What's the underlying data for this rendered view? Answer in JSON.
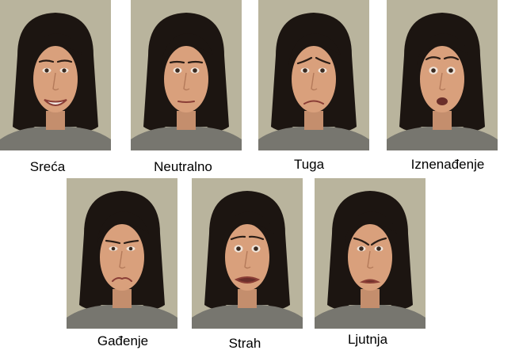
{
  "faces": [
    {
      "label": "Sreća",
      "expression": "happy"
    },
    {
      "label": "Neutralno",
      "expression": "neutral"
    },
    {
      "label": "Tuga",
      "expression": "sad"
    },
    {
      "label": "Iznenađenje",
      "expression": "surprise"
    },
    {
      "label": "Gađenje",
      "expression": "disgust"
    },
    {
      "label": "Strah",
      "expression": "fear"
    },
    {
      "label": "Ljutnja",
      "expression": "anger"
    }
  ],
  "colors": {
    "background": "#b9b49d",
    "hair": "#1c1511",
    "skin": "#d9a07c",
    "shirt": "#77766f"
  }
}
